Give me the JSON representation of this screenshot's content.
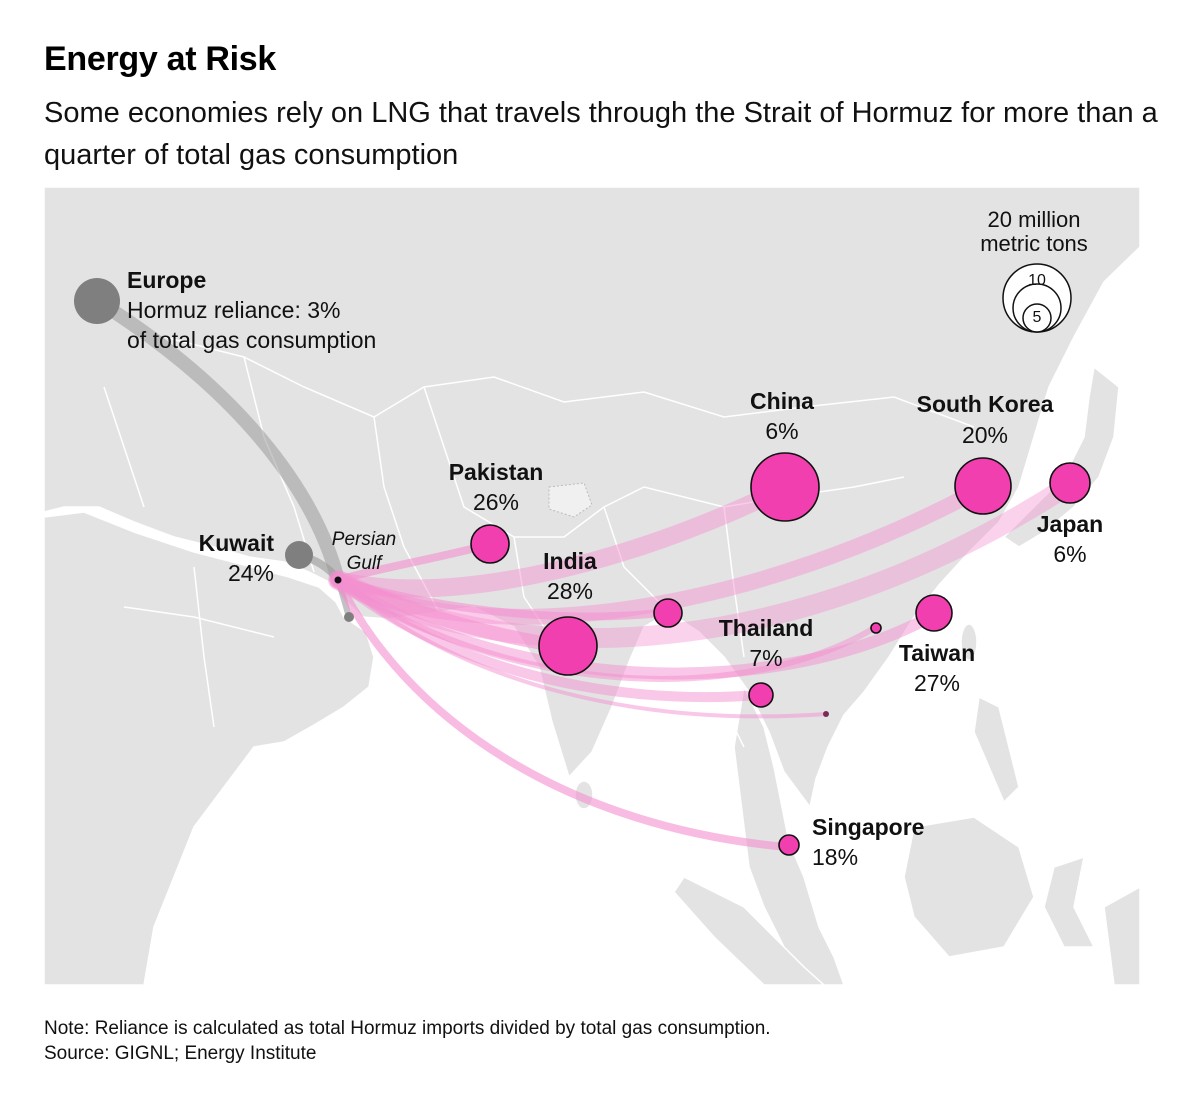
{
  "header": {
    "title": "Energy at Risk",
    "subtitle": "Some economies rely on LNG that travels through the Strait of Hormuz for more than a quarter of total gas consumption"
  },
  "legend": {
    "line1": "20 million",
    "line2": "metric tons",
    "mark_10": "10",
    "mark_5": "5"
  },
  "gulf_label": {
    "line1": "Persian",
    "line2": "Gulf"
  },
  "europe_text": {
    "name": "Europe",
    "line1": "Hormuz reliance: 3%",
    "line2": "of total gas consumption"
  },
  "destinations": [
    {
      "id": "china",
      "name": "China",
      "reliance": "6%"
    },
    {
      "id": "south-korea",
      "name": "South Korea",
      "reliance": "20%"
    },
    {
      "id": "japan",
      "name": "Japan",
      "reliance": "6%"
    },
    {
      "id": "pakistan",
      "name": "Pakistan",
      "reliance": "26%"
    },
    {
      "id": "india",
      "name": "India",
      "reliance": "28%"
    },
    {
      "id": "thailand",
      "name": "Thailand",
      "reliance": "7%"
    },
    {
      "id": "taiwan",
      "name": "Taiwan",
      "reliance": "27%"
    },
    {
      "id": "kuwait",
      "name": "Kuwait",
      "reliance": "24%"
    },
    {
      "id": "singapore",
      "name": "Singapore",
      "reliance": "18%"
    }
  ],
  "colors": {
    "hormuz_dependent": "#f23fb0",
    "other": "#7f7f7f",
    "land": "#e3e3e3",
    "flow": "#f48fd0"
  },
  "footer": {
    "note": "Note: Reliance is calculated as total Hormuz imports divided by total gas consumption.",
    "source": "Source: GIGNL; Energy Institute"
  }
}
